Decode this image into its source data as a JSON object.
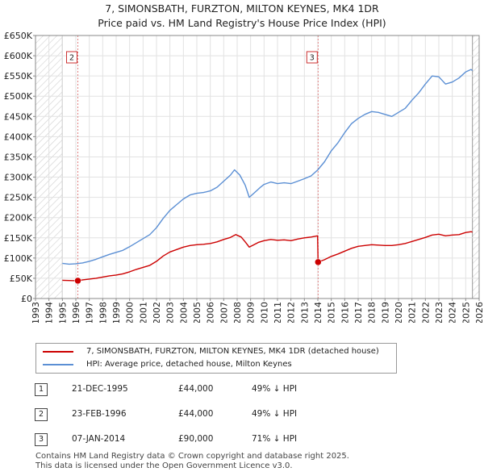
{
  "title_line1": "7, SIMONSBATH, FURZTON, MILTON KEYNES, MK4 1DR",
  "title_line2": "Price paid vs. HM Land Registry's House Price Index (HPI)",
  "chart_data": {
    "type": "line",
    "xlim": [
      1993,
      2026
    ],
    "ylim": [
      0,
      650000
    ],
    "y_ticks": [
      {
        "value": 0,
        "label": "£0"
      },
      {
        "value": 50000,
        "label": "£50K"
      },
      {
        "value": 100000,
        "label": "£100K"
      },
      {
        "value": 150000,
        "label": "£150K"
      },
      {
        "value": 200000,
        "label": "£200K"
      },
      {
        "value": 250000,
        "label": "£250K"
      },
      {
        "value": 300000,
        "label": "£300K"
      },
      {
        "value": 350000,
        "label": "£350K"
      },
      {
        "value": 400000,
        "label": "£400K"
      },
      {
        "value": 450000,
        "label": "£450K"
      },
      {
        "value": 500000,
        "label": "£500K"
      },
      {
        "value": 550000,
        "label": "£550K"
      },
      {
        "value": 600000,
        "label": "£600K"
      },
      {
        "value": 650000,
        "label": "£650K"
      }
    ],
    "x_ticks": [
      "1993",
      "1994",
      "1995",
      "1996",
      "1997",
      "1998",
      "1999",
      "2000",
      "2001",
      "2002",
      "2003",
      "2004",
      "2005",
      "2006",
      "2007",
      "2008",
      "2009",
      "2010",
      "2011",
      "2012",
      "2013",
      "2014",
      "2015",
      "2016",
      "2017",
      "2018",
      "2019",
      "2020",
      "2021",
      "2022",
      "2023",
      "2024",
      "2025",
      "2026"
    ],
    "data_start": 1995.0,
    "data_end": 2025.5,
    "series": [
      {
        "name": "7, SIMONSBATH, FURZTON, MILTON KEYNES, MK4 1DR (detached house)",
        "color": "#cc0000",
        "points": [
          [
            1995.0,
            45000
          ],
          [
            1995.97,
            44000
          ],
          [
            1996.15,
            44000
          ],
          [
            1996.5,
            46000
          ],
          [
            1997.0,
            48000
          ],
          [
            1997.5,
            50000
          ],
          [
            1998.0,
            53000
          ],
          [
            1998.5,
            56000
          ],
          [
            1999.0,
            58000
          ],
          [
            1999.5,
            61000
          ],
          [
            2000.0,
            66000
          ],
          [
            2000.5,
            72000
          ],
          [
            2001.0,
            77000
          ],
          [
            2001.5,
            82000
          ],
          [
            2002.0,
            92000
          ],
          [
            2002.5,
            105000
          ],
          [
            2003.0,
            115000
          ],
          [
            2003.5,
            121000
          ],
          [
            2004.0,
            127000
          ],
          [
            2004.5,
            131000
          ],
          [
            2005.0,
            133000
          ],
          [
            2005.5,
            134000
          ],
          [
            2006.0,
            136000
          ],
          [
            2006.5,
            140000
          ],
          [
            2007.0,
            146000
          ],
          [
            2007.5,
            151000
          ],
          [
            2007.9,
            158000
          ],
          [
            2008.3,
            152000
          ],
          [
            2008.6,
            140000
          ],
          [
            2008.9,
            127000
          ],
          [
            2009.2,
            132000
          ],
          [
            2009.6,
            139000
          ],
          [
            2010.0,
            143000
          ],
          [
            2010.5,
            146000
          ],
          [
            2011.0,
            144000
          ],
          [
            2011.5,
            145000
          ],
          [
            2012.0,
            143000
          ],
          [
            2012.5,
            147000
          ],
          [
            2013.0,
            150000
          ],
          [
            2013.5,
            152000
          ],
          [
            2013.98,
            155000
          ],
          [
            2014.02,
            90000
          ],
          [
            2014.5,
            96000
          ],
          [
            2015.0,
            104000
          ],
          [
            2015.5,
            110000
          ],
          [
            2016.0,
            117000
          ],
          [
            2016.5,
            124000
          ],
          [
            2017.0,
            129000
          ],
          [
            2017.5,
            131000
          ],
          [
            2018.0,
            133000
          ],
          [
            2018.5,
            132000
          ],
          [
            2019.0,
            131000
          ],
          [
            2019.5,
            131000
          ],
          [
            2020.0,
            133000
          ],
          [
            2020.5,
            136000
          ],
          [
            2021.0,
            141000
          ],
          [
            2021.5,
            146000
          ],
          [
            2022.0,
            151000
          ],
          [
            2022.5,
            157000
          ],
          [
            2023.0,
            159000
          ],
          [
            2023.5,
            155000
          ],
          [
            2024.0,
            157000
          ],
          [
            2024.5,
            158000
          ],
          [
            2025.0,
            163000
          ],
          [
            2025.4,
            165000
          ],
          [
            2025.5,
            164000
          ]
        ]
      },
      {
        "name": "HPI: Average price, detached house, Milton Keynes",
        "color": "#5b8fd4",
        "points": [
          [
            1995.0,
            87000
          ],
          [
            1995.5,
            85000
          ],
          [
            1996.0,
            86000
          ],
          [
            1996.5,
            88000
          ],
          [
            1997.0,
            92000
          ],
          [
            1997.5,
            97000
          ],
          [
            1998.0,
            103000
          ],
          [
            1998.5,
            109000
          ],
          [
            1999.0,
            114000
          ],
          [
            1999.5,
            119000
          ],
          [
            2000.0,
            128000
          ],
          [
            2000.5,
            138000
          ],
          [
            2001.0,
            148000
          ],
          [
            2001.5,
            158000
          ],
          [
            2002.0,
            175000
          ],
          [
            2002.5,
            198000
          ],
          [
            2003.0,
            218000
          ],
          [
            2003.5,
            232000
          ],
          [
            2004.0,
            246000
          ],
          [
            2004.5,
            256000
          ],
          [
            2005.0,
            260000
          ],
          [
            2005.5,
            262000
          ],
          [
            2006.0,
            266000
          ],
          [
            2006.5,
            275000
          ],
          [
            2007.0,
            290000
          ],
          [
            2007.5,
            305000
          ],
          [
            2007.8,
            318000
          ],
          [
            2008.2,
            305000
          ],
          [
            2008.6,
            280000
          ],
          [
            2008.9,
            250000
          ],
          [
            2009.3,
            262000
          ],
          [
            2009.7,
            274000
          ],
          [
            2010.0,
            282000
          ],
          [
            2010.5,
            288000
          ],
          [
            2011.0,
            284000
          ],
          [
            2011.5,
            286000
          ],
          [
            2012.0,
            284000
          ],
          [
            2012.5,
            290000
          ],
          [
            2013.0,
            296000
          ],
          [
            2013.5,
            303000
          ],
          [
            2014.0,
            318000
          ],
          [
            2014.5,
            338000
          ],
          [
            2015.0,
            365000
          ],
          [
            2015.5,
            385000
          ],
          [
            2016.0,
            410000
          ],
          [
            2016.5,
            432000
          ],
          [
            2017.0,
            445000
          ],
          [
            2017.5,
            455000
          ],
          [
            2018.0,
            462000
          ],
          [
            2018.5,
            460000
          ],
          [
            2019.0,
            455000
          ],
          [
            2019.5,
            450000
          ],
          [
            2020.0,
            460000
          ],
          [
            2020.5,
            470000
          ],
          [
            2021.0,
            490000
          ],
          [
            2021.5,
            508000
          ],
          [
            2022.0,
            530000
          ],
          [
            2022.5,
            550000
          ],
          [
            2023.0,
            548000
          ],
          [
            2023.5,
            530000
          ],
          [
            2024.0,
            535000
          ],
          [
            2024.5,
            545000
          ],
          [
            2025.0,
            560000
          ],
          [
            2025.4,
            566000
          ],
          [
            2025.5,
            563000
          ]
        ]
      }
    ],
    "transactions": [
      {
        "id": "1",
        "date": "21-DEC-1995",
        "price": "£44,000",
        "diff": "49% ↓ HPI",
        "year": 1995.97,
        "value": 44000,
        "marker_shown": false
      },
      {
        "id": "2",
        "date": "23-FEB-1996",
        "price": "£44,000",
        "diff": "49% ↓ HPI",
        "year": 1996.15,
        "value": 44000,
        "marker_shown": true
      },
      {
        "id": "3",
        "date": "07-JAN-2014",
        "price": "£90,000",
        "diff": "71% ↓ HPI",
        "year": 2014.02,
        "value": 90000,
        "marker_shown": true
      }
    ]
  },
  "legend": {
    "property_label": "7, SIMONSBATH, FURZTON, MILTON KEYNES, MK4 1DR (detached house)",
    "hpi_label": "HPI: Average price, detached house, Milton Keynes"
  },
  "footer_line1": "Contains HM Land Registry data © Crown copyright and database right 2025.",
  "footer_line2": "This data is licensed under the Open Government Licence v3.0."
}
